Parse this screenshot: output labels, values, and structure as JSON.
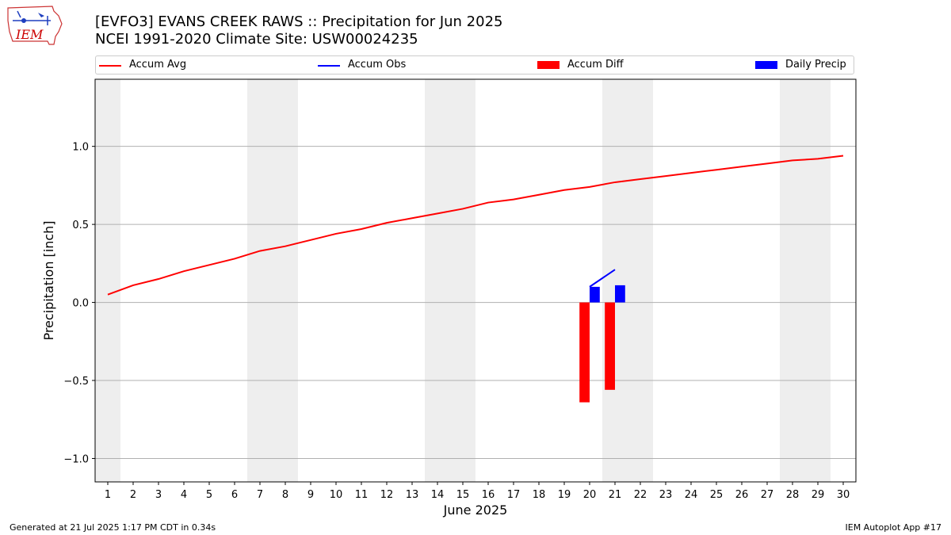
{
  "header": {
    "title_line1": "[EVFO3] EVANS CREEK RAWS :: Precipitation for Jun 2025",
    "title_line2": "NCEI 1991-2020 Climate Site: USW00024235"
  },
  "logo": {
    "text": "IEM",
    "icon": "iem-iowa-logo",
    "color": "#cc0000"
  },
  "footer": {
    "left": "Generated at 21 Jul 2025 1:17 PM CDT in 0.34s",
    "right": "IEM Autoplot App #17"
  },
  "chart_data": {
    "type": "bar",
    "title": "[EVFO3] EVANS CREEK RAWS :: Precipitation for Jun 2025",
    "subtitle": "NCEI 1991-2020 Climate Site: USW00024235",
    "xlabel": "June 2025",
    "ylabel": "Precipitation [inch]",
    "ylim": [
      -1.15,
      1.43
    ],
    "xlim": [
      0.5,
      30.5
    ],
    "yticks": [
      -1.0,
      -0.5,
      0.0,
      0.5,
      1.0
    ],
    "ytick_labels": [
      "−1.0",
      "−0.5",
      "0.0",
      "0.5",
      "1.0"
    ],
    "x": [
      1,
      2,
      3,
      4,
      5,
      6,
      7,
      8,
      9,
      10,
      11,
      12,
      13,
      14,
      15,
      16,
      17,
      18,
      19,
      20,
      21,
      22,
      23,
      24,
      25,
      26,
      27,
      28,
      29,
      30
    ],
    "grid": "horizontal",
    "legend_position": "top",
    "weekend_shading": [
      [
        0.5,
        1.5
      ],
      [
        6.5,
        8.5
      ],
      [
        13.5,
        15.5
      ],
      [
        20.5,
        22.5
      ],
      [
        27.5,
        29.5
      ]
    ],
    "series": [
      {
        "name": "Accum Avg",
        "kind": "line",
        "color": "#ff0000",
        "x": [
          1,
          2,
          3,
          4,
          5,
          6,
          7,
          8,
          9,
          10,
          11,
          12,
          13,
          14,
          15,
          16,
          17,
          18,
          19,
          20,
          21,
          22,
          23,
          24,
          25,
          26,
          27,
          28,
          29,
          30
        ],
        "values": [
          0.05,
          0.11,
          0.15,
          0.2,
          0.24,
          0.28,
          0.33,
          0.36,
          0.4,
          0.44,
          0.47,
          0.51,
          0.54,
          0.57,
          0.6,
          0.64,
          0.66,
          0.69,
          0.72,
          0.74,
          0.77,
          0.79,
          0.81,
          0.83,
          0.85,
          0.87,
          0.89,
          0.91,
          0.92,
          0.94
        ]
      },
      {
        "name": "Accum Obs",
        "kind": "line",
        "color": "#0000ff",
        "x": [
          20,
          21
        ],
        "values": [
          0.1,
          0.21
        ]
      },
      {
        "name": "Accum Diff",
        "kind": "bar",
        "color": "#ff0000",
        "x": [
          20,
          21
        ],
        "values": [
          -0.64,
          -0.56
        ]
      },
      {
        "name": "Daily Precip",
        "kind": "bar",
        "color": "#0000ff",
        "x": [
          20,
          21
        ],
        "values": [
          0.1,
          0.11
        ]
      }
    ]
  }
}
